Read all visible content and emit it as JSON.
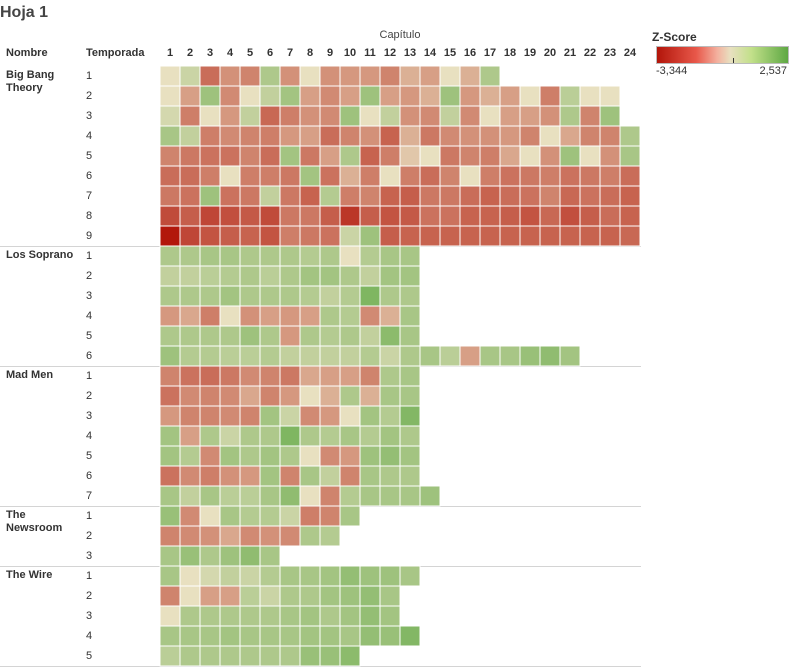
{
  "sheet_title": "Hoja 1",
  "chart_data": {
    "type": "heatmap",
    "column_axis_title": "Capítulo",
    "row_headers": [
      "Nombre",
      "Temporada"
    ],
    "columns": [
      "1",
      "2",
      "3",
      "4",
      "5",
      "6",
      "7",
      "8",
      "9",
      "10",
      "11",
      "12",
      "13",
      "14",
      "15",
      "16",
      "17",
      "18",
      "19",
      "20",
      "21",
      "22",
      "23",
      "24"
    ],
    "color_legend": {
      "title": "Z-Score",
      "min_label": "-3,344",
      "max_label": "2,537",
      "min": -3.344,
      "max": 2.537,
      "colors": {
        "low": "#b2150a",
        "mid": "#e8e0c0",
        "high": "#5ea843"
      }
    },
    "shows": [
      {
        "name": "Big Bang Theory",
        "seasons": [
          {
            "season": "1",
            "values": [
              0.0,
              0.2,
              -1.3,
              -0.7,
              -0.9,
              0.6,
              -0.7,
              0.0,
              -0.7,
              -0.6,
              -0.6,
              -0.9,
              -0.3,
              -0.5,
              0.0,
              -0.3,
              0.6
            ]
          },
          {
            "season": "2",
            "values": [
              0.0,
              -0.5,
              0.9,
              -0.8,
              0.0,
              0.3,
              0.8,
              -0.5,
              -0.8,
              -0.5,
              0.9,
              -0.5,
              -0.6,
              -0.3,
              0.9,
              -0.6,
              -0.3,
              -0.5,
              0.0,
              -1.0,
              0.4,
              0.0,
              0.0
            ]
          },
          {
            "season": "3",
            "values": [
              0.1,
              -1.0,
              0.0,
              -0.6,
              0.3,
              -1.4,
              -1.0,
              -0.7,
              -0.8,
              0.9,
              0.0,
              0.3,
              -0.7,
              -0.8,
              0.3,
              -0.8,
              0.0,
              -0.5,
              -0.5,
              -0.7,
              0.6,
              -0.9,
              0.9
            ]
          },
          {
            "season": "4",
            "values": [
              0.7,
              0.3,
              -1.0,
              -0.8,
              -0.9,
              -1.0,
              -0.6,
              -0.5,
              -1.3,
              -0.9,
              -0.7,
              -1.5,
              -0.3,
              -1.1,
              -0.8,
              -0.7,
              -0.7,
              -0.6,
              -0.9,
              0.0,
              -0.4,
              -0.9,
              -0.9,
              0.6
            ]
          },
          {
            "season": "5",
            "values": [
              -0.9,
              -1.1,
              -1.2,
              -1.2,
              -0.9,
              -1.3,
              0.8,
              -1.1,
              -0.5,
              0.6,
              -1.5,
              -1.0,
              -0.1,
              0.0,
              -1.1,
              -0.9,
              -1.0,
              -0.4,
              0.0,
              -0.7,
              0.9,
              0.0,
              -0.7,
              0.7
            ]
          },
          {
            "season": "6",
            "values": [
              -1.3,
              -1.3,
              -1.0,
              0.0,
              -1.0,
              -1.0,
              -1.1,
              0.8,
              -1.2,
              -0.3,
              -1.0,
              0.0,
              -1.0,
              -1.3,
              -0.9,
              0.0,
              -1.0,
              -1.2,
              -1.1,
              -1.0,
              -1.2,
              -1.1,
              -1.0,
              -1.3
            ]
          },
          {
            "season": "7",
            "values": [
              -1.1,
              -1.2,
              0.9,
              -1.2,
              -1.1,
              0.3,
              -1.1,
              -1.5,
              0.5,
              -1.0,
              -0.9,
              -1.5,
              -1.6,
              -1.1,
              -1.1,
              -1.3,
              -1.5,
              -1.3,
              -1.2,
              -0.9,
              -1.4,
              -1.2,
              -1.3,
              -1.5
            ]
          },
          {
            "season": "8",
            "values": [
              -2.0,
              -1.6,
              -2.1,
              -1.9,
              -1.7,
              -2.0,
              -1.1,
              -1.1,
              -1.6,
              -2.5,
              -1.6,
              -1.8,
              -1.7,
              -1.2,
              -1.2,
              -1.5,
              -1.5,
              -1.6,
              -1.8,
              -1.4,
              -1.9,
              -1.6,
              -1.3,
              -1.5
            ]
          },
          {
            "season": "9",
            "values": [
              -3.3,
              -2.1,
              -1.8,
              -1.6,
              -1.5,
              -1.8,
              -1.0,
              -1.1,
              -1.2,
              0.2,
              0.9,
              -1.6,
              -1.5,
              -1.5,
              -1.5,
              -1.5,
              -1.5,
              -1.5,
              -1.5,
              -1.5,
              -1.5,
              -1.5,
              -1.5,
              -1.4
            ]
          }
        ]
      },
      {
        "name": "Los Soprano",
        "seasons": [
          {
            "season": "1",
            "values": [
              0.6,
              0.6,
              0.7,
              0.7,
              0.6,
              0.6,
              0.6,
              0.5,
              0.6,
              0.0,
              0.5,
              0.7,
              0.7
            ]
          },
          {
            "season": "2",
            "values": [
              0.3,
              0.3,
              0.4,
              0.5,
              0.6,
              0.4,
              0.6,
              0.8,
              0.8,
              0.6,
              0.3,
              0.8,
              0.8
            ]
          },
          {
            "season": "3",
            "values": [
              0.6,
              0.6,
              0.6,
              0.8,
              0.6,
              0.6,
              0.6,
              0.5,
              0.3,
              0.5,
              1.6,
              0.6,
              0.6
            ]
          },
          {
            "season": "4",
            "values": [
              -0.6,
              -0.4,
              -1.0,
              0.0,
              -0.7,
              -0.5,
              -0.6,
              -0.5,
              0.6,
              0.5,
              -0.8,
              -0.3,
              0.7
            ]
          },
          {
            "season": "5",
            "values": [
              0.6,
              0.6,
              0.6,
              0.6,
              0.9,
              0.6,
              -0.6,
              0.6,
              0.5,
              0.6,
              0.3,
              1.3,
              0.7
            ]
          },
          {
            "season": "6",
            "values": [
              0.9,
              0.5,
              0.5,
              0.4,
              0.4,
              0.5,
              0.3,
              0.3,
              0.3,
              0.3,
              0.5,
              0.2,
              0.6,
              0.7,
              0.4,
              -0.5,
              0.7,
              0.7,
              1.0,
              1.2,
              0.8
            ]
          }
        ]
      },
      {
        "name": "Mad Men",
        "seasons": [
          {
            "season": "1",
            "values": [
              -0.9,
              -1.2,
              -1.3,
              -1.1,
              -0.8,
              -0.9,
              -1.1,
              -0.4,
              -0.5,
              -0.5,
              -0.9,
              0.6,
              0.7
            ]
          },
          {
            "season": "2",
            "values": [
              -1.2,
              -0.8,
              -0.9,
              -0.8,
              -0.4,
              -0.9,
              -0.6,
              0.0,
              -0.3,
              0.6,
              -0.3,
              0.7,
              0.7
            ]
          },
          {
            "season": "3",
            "values": [
              -0.6,
              -0.9,
              -0.9,
              -0.8,
              -0.9,
              0.8,
              0.2,
              -0.8,
              -0.6,
              0.0,
              0.8,
              0.5,
              1.5
            ]
          },
          {
            "season": "4",
            "values": [
              0.8,
              -0.5,
              0.6,
              0.2,
              0.6,
              0.6,
              1.6,
              0.6,
              0.5,
              0.7,
              0.5,
              0.8,
              0.6
            ]
          },
          {
            "season": "5",
            "values": [
              0.8,
              0.5,
              -0.8,
              0.8,
              0.6,
              0.8,
              0.6,
              0.0,
              -0.8,
              -0.6,
              0.9,
              1.1,
              0.8
            ]
          },
          {
            "season": "6",
            "values": [
              -1.2,
              -0.8,
              -1.0,
              -0.7,
              -0.6,
              0.8,
              -0.9,
              0.7,
              0.3,
              -0.9,
              0.7,
              0.6,
              0.6
            ]
          },
          {
            "season": "7",
            "values": [
              0.7,
              0.3,
              0.7,
              0.4,
              0.4,
              0.7,
              1.2,
              0.0,
              -0.9,
              0.5,
              0.7,
              0.7,
              0.7,
              0.9
            ]
          }
        ]
      },
      {
        "name": "The Newsroom",
        "seasons": [
          {
            "season": "1",
            "values": [
              1.0,
              -0.8,
              0.0,
              0.7,
              0.5,
              0.5,
              0.2,
              -1.0,
              -0.9,
              0.7
            ]
          },
          {
            "season": "2",
            "values": [
              -0.9,
              -0.8,
              -0.7,
              -0.4,
              -0.8,
              -0.7,
              -0.8,
              0.6,
              0.5
            ]
          },
          {
            "season": "3",
            "values": [
              0.7,
              1.0,
              0.6,
              0.9,
              1.2,
              0.7
            ]
          }
        ]
      },
      {
        "name": "The Wire",
        "seasons": [
          {
            "season": "1",
            "values": [
              0.7,
              0.0,
              0.1,
              0.3,
              0.2,
              0.5,
              0.7,
              0.7,
              0.8,
              1.1,
              0.9,
              0.9,
              0.7
            ]
          },
          {
            "season": "2",
            "values": [
              -0.9,
              0.0,
              -0.5,
              -0.5,
              0.4,
              0.2,
              0.6,
              0.6,
              0.8,
              0.9,
              1.1,
              0.7
            ]
          },
          {
            "season": "3",
            "values": [
              0.0,
              0.6,
              0.6,
              0.6,
              0.6,
              0.6,
              0.7,
              0.8,
              0.6,
              0.8,
              1.1,
              0.8
            ]
          },
          {
            "season": "4",
            "values": [
              0.7,
              0.7,
              0.7,
              0.8,
              0.7,
              0.7,
              0.7,
              0.8,
              0.8,
              0.7,
              1.1,
              1.0,
              1.5
            ]
          },
          {
            "season": "5",
            "values": [
              0.4,
              0.6,
              0.6,
              0.6,
              0.6,
              0.6,
              0.6,
              1.0,
              1.0,
              1.3
            ]
          }
        ]
      }
    ]
  }
}
